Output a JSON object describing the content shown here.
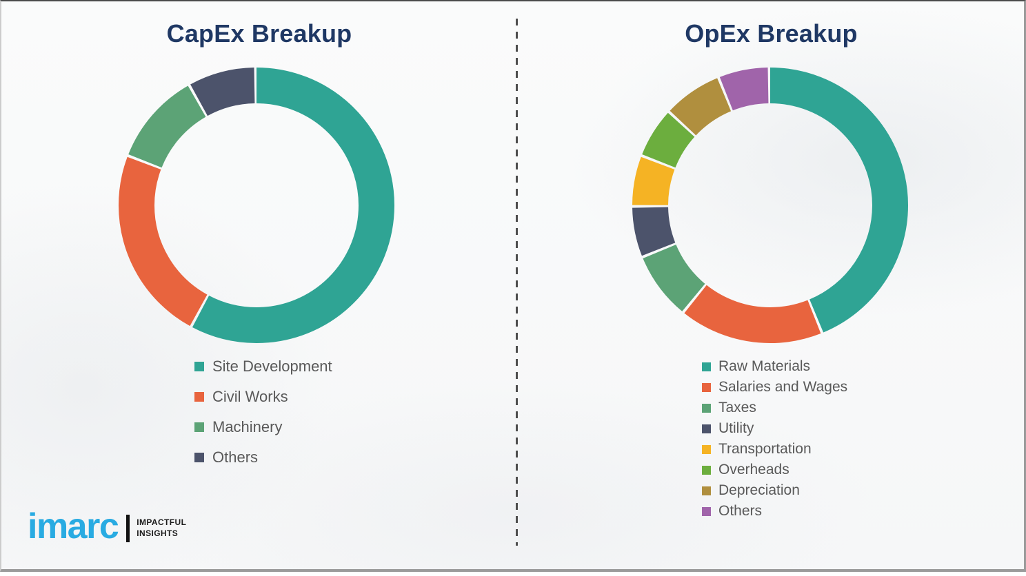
{
  "chart_data": [
    {
      "type": "pie",
      "variant": "donut",
      "title": "CapEx Breakup",
      "labels": [
        "Site Development",
        "Civil Works",
        "Machinery",
        "Others"
      ],
      "values": [
        58,
        23,
        11,
        8
      ],
      "colors": [
        "#2FA494",
        "#E8643E",
        "#5CA376",
        "#4C536B"
      ],
      "legend_position": "below-left",
      "start_angle": "top",
      "direction": "clockwise",
      "data_labels_shown": false
    },
    {
      "type": "pie",
      "variant": "donut",
      "title": "OpEx Breakup",
      "labels": [
        "Raw Materials",
        "Salaries and Wages",
        "Taxes",
        "Utility",
        "Transportation",
        "Overheads",
        "Depreciation",
        "Others"
      ],
      "values": [
        44,
        17,
        8,
        6,
        6,
        6,
        7,
        6
      ],
      "colors": [
        "#2FA494",
        "#E8643E",
        "#5CA376",
        "#4C536B",
        "#F5B324",
        "#6CAE3E",
        "#B08F3E",
        "#A064AA"
      ],
      "legend_position": "below-left",
      "start_angle": "top",
      "direction": "clockwise",
      "data_labels_shown": false
    }
  ],
  "branding": {
    "logo_text": "imarc",
    "tagline_line1": "IMPACTFUL",
    "tagline_line2": "INSIGHTS"
  },
  "style": {
    "title_color": "#1F3864",
    "legend_text_color": "#595959",
    "logo_blue": "#29ABE2",
    "divider_color": "#4E4E4E",
    "background": "#FAFBFB"
  }
}
